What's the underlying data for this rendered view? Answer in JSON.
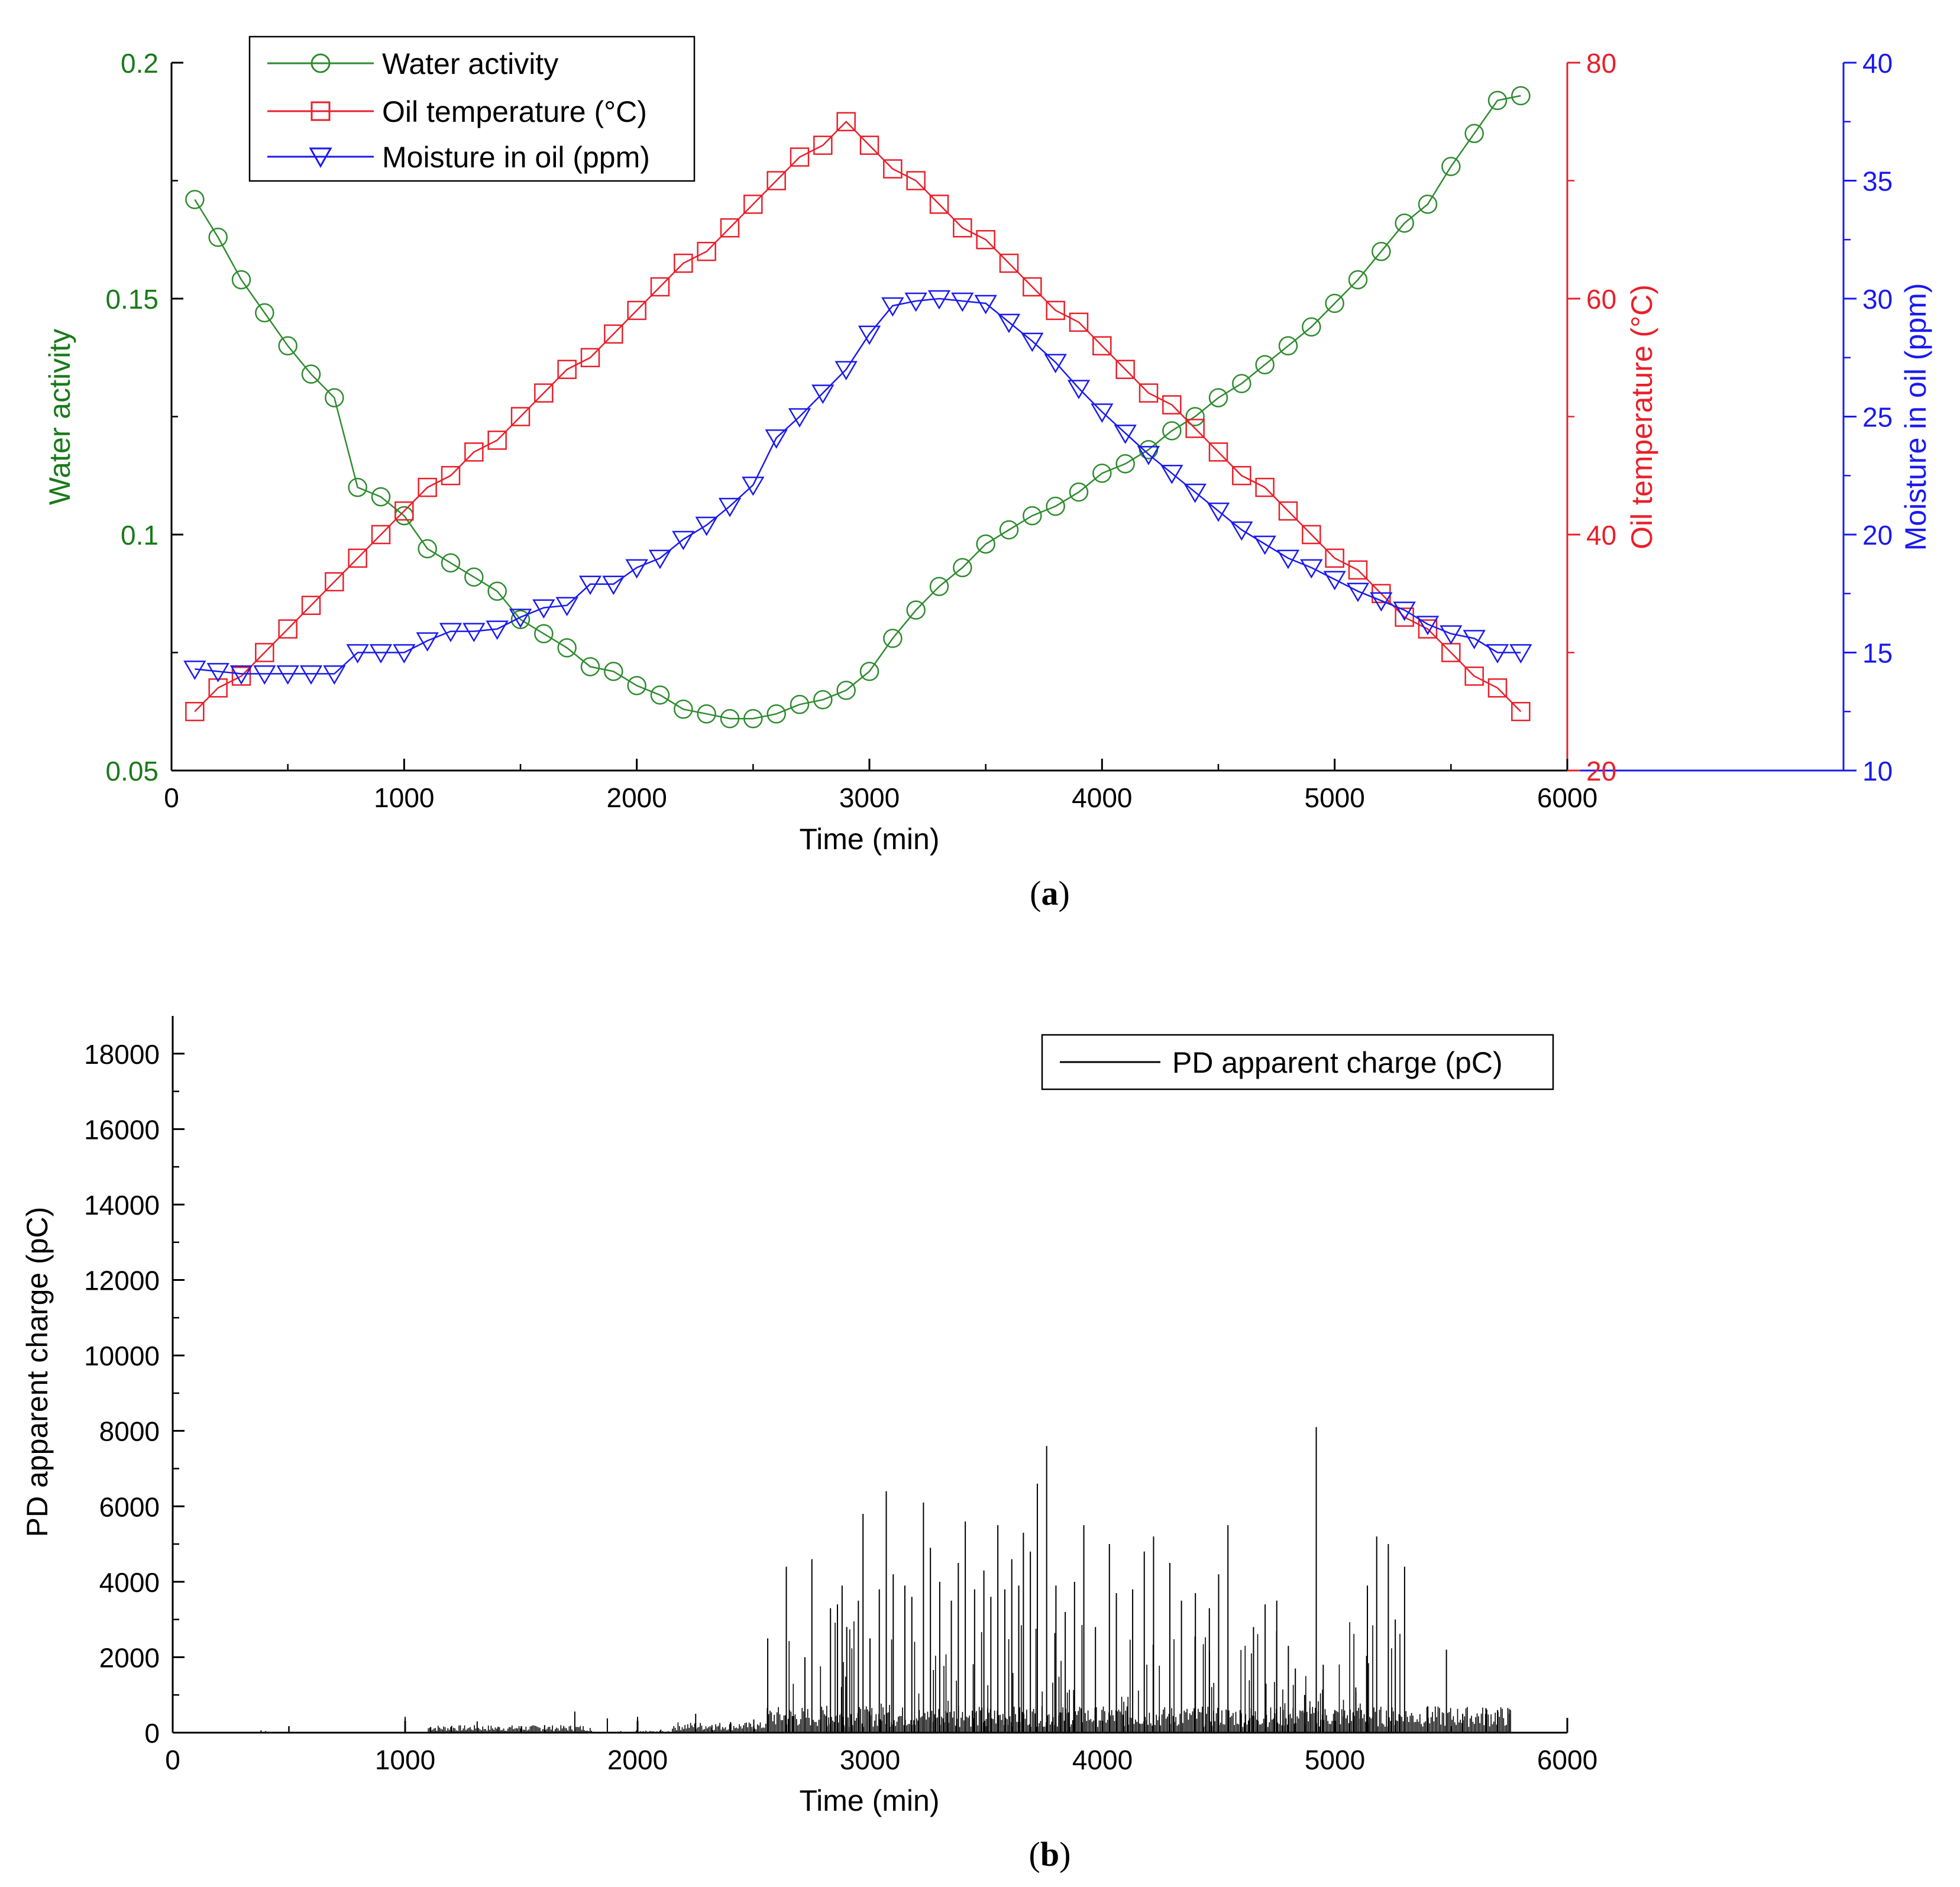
{
  "chart_data": [
    {
      "type": "line",
      "panel_label": "(a)",
      "panel_letter": "a",
      "xlabel": "Time (min)",
      "xlim": [
        0,
        6000
      ],
      "xticks": [
        0,
        1000,
        2000,
        3000,
        4000,
        5000,
        6000
      ],
      "axes": {
        "left": {
          "label": "Water activity",
          "lim": [
            0.05,
            0.2
          ],
          "ticks": [
            "0.05",
            "0.1",
            "0.15",
            "0.2"
          ],
          "color": "#1a7a1a"
        },
        "right1": {
          "label": "Oil temperature (°C)",
          "lim": [
            20,
            80
          ],
          "ticks": [
            "20",
            "40",
            "60",
            "80"
          ],
          "color": "#e8202a"
        },
        "right2": {
          "label": "Moisture in oil (ppm)",
          "lim": [
            10,
            40
          ],
          "ticks": [
            "10",
            "15",
            "20",
            "25",
            "30",
            "35",
            "40"
          ],
          "color": "#1a1aee"
        }
      },
      "series": [
        {
          "name": "Water activity",
          "axis": "left",
          "marker": "circle",
          "color": "#2e8b2e",
          "x": [
            100,
            200,
            300,
            400,
            500,
            600,
            700,
            800,
            900,
            1000,
            1100,
            1200,
            1300,
            1400,
            1500,
            1600,
            1700,
            1800,
            1900,
            2000,
            2100,
            2200,
            2300,
            2400,
            2500,
            2600,
            2700,
            2800,
            2900,
            3000,
            3100,
            3200,
            3300,
            3400,
            3500,
            3600,
            3700,
            3800,
            3900,
            4000,
            4100,
            4200,
            4300,
            4400,
            4500,
            4600,
            4700,
            4800,
            4900,
            5000,
            5100,
            5200,
            5300,
            5400,
            5500,
            5600,
            5700,
            5800
          ],
          "values": [
            0.171,
            0.163,
            0.154,
            0.147,
            0.14,
            0.134,
            0.129,
            0.11,
            0.108,
            0.104,
            0.097,
            0.094,
            0.091,
            0.088,
            0.082,
            0.079,
            0.076,
            0.072,
            0.071,
            0.068,
            0.066,
            0.063,
            0.062,
            0.061,
            0.061,
            0.062,
            0.064,
            0.065,
            0.067,
            0.071,
            0.078,
            0.084,
            0.089,
            0.093,
            0.098,
            0.101,
            0.104,
            0.106,
            0.109,
            0.113,
            0.115,
            0.118,
            0.122,
            0.125,
            0.129,
            0.132,
            0.136,
            0.14,
            0.144,
            0.149,
            0.154,
            0.16,
            0.166,
            0.17,
            0.178,
            0.185,
            0.192,
            0.193
          ]
        },
        {
          "name": "Oil temperature (°C)",
          "axis": "right1",
          "marker": "square",
          "color": "#e8202a",
          "x": [
            100,
            200,
            300,
            400,
            500,
            600,
            700,
            800,
            900,
            1000,
            1100,
            1200,
            1300,
            1400,
            1500,
            1600,
            1700,
            1800,
            1900,
            2000,
            2100,
            2200,
            2300,
            2400,
            2500,
            2600,
            2700,
            2800,
            2900,
            3000,
            3100,
            3200,
            3300,
            3400,
            3500,
            3600,
            3700,
            3800,
            3900,
            4000,
            4100,
            4200,
            4300,
            4400,
            4500,
            4600,
            4700,
            4800,
            4900,
            5000,
            5100,
            5200,
            5300,
            5400,
            5500,
            5600,
            5700,
            5800
          ],
          "values": [
            25,
            27,
            28,
            30,
            32,
            34,
            36,
            38,
            40,
            42,
            44,
            45,
            47,
            48,
            50,
            52,
            54,
            55,
            57,
            59,
            61,
            63,
            64,
            66,
            68,
            70,
            72,
            73,
            75,
            73,
            71,
            70,
            68,
            66,
            65,
            63,
            61,
            59,
            58,
            56,
            54,
            52,
            51,
            49,
            47,
            45,
            44,
            42,
            40,
            38,
            37,
            35,
            33,
            32,
            30,
            28,
            27,
            25
          ]
        },
        {
          "name": "Moisture in oil (ppm)",
          "axis": "right2",
          "marker": "triangle-down",
          "color": "#1a1aee",
          "x": [
            100,
            200,
            300,
            400,
            500,
            600,
            700,
            800,
            900,
            1000,
            1100,
            1200,
            1300,
            1400,
            1500,
            1600,
            1700,
            1800,
            1900,
            2000,
            2100,
            2200,
            2300,
            2400,
            2500,
            2600,
            2700,
            2800,
            2900,
            3000,
            3100,
            3200,
            3300,
            3400,
            3500,
            3600,
            3700,
            3800,
            3900,
            4000,
            4100,
            4200,
            4300,
            4400,
            4500,
            4600,
            4700,
            4800,
            4900,
            5000,
            5100,
            5200,
            5300,
            5400,
            5500,
            5600,
            5700,
            5800
          ],
          "values": [
            14.3,
            14.2,
            14.1,
            14.1,
            14.1,
            14.1,
            14.1,
            15.0,
            15.0,
            15.0,
            15.5,
            15.9,
            15.9,
            16.0,
            16.5,
            16.9,
            17.0,
            17.9,
            17.9,
            18.6,
            19.0,
            19.8,
            20.4,
            21.2,
            22.1,
            24.1,
            25.0,
            26.0,
            27.0,
            28.5,
            29.7,
            29.9,
            30.0,
            29.9,
            29.8,
            29.0,
            28.2,
            27.3,
            26.2,
            25.2,
            24.3,
            23.4,
            22.6,
            21.8,
            21.0,
            20.2,
            19.6,
            19.0,
            18.6,
            18.1,
            17.6,
            17.2,
            16.8,
            16.2,
            15.8,
            15.6,
            15.0,
            15.0
          ]
        }
      ],
      "legend": {
        "position": "top-left",
        "entries": [
          "Water activity",
          "Oil temperature (°C)",
          "Moisture in oil (ppm)"
        ]
      }
    },
    {
      "type": "line",
      "panel_label": "(b)",
      "panel_letter": "b",
      "xlabel": "Time (min)",
      "ylabel": "PD apparent charge (pC)",
      "xlim": [
        0,
        6000
      ],
      "ylim": [
        0,
        19000
      ],
      "xticks": [
        0,
        1000,
        2000,
        3000,
        4000,
        5000,
        6000
      ],
      "yticks": [
        0,
        2000,
        4000,
        6000,
        8000,
        10000,
        12000,
        14000,
        16000,
        18000
      ],
      "series": [
        {
          "name": "PD apparent charge (pC)",
          "color": "#000000",
          "spikes": [
            [
              380,
              60
            ],
            [
              400,
              40
            ],
            [
              1000,
              420
            ],
            [
              1110,
              150
            ],
            [
              1200,
              180
            ],
            [
              1310,
              300
            ],
            [
              1400,
              140
            ],
            [
              1500,
              160
            ],
            [
              1600,
              200
            ],
            [
              1730,
              560
            ],
            [
              1870,
              380
            ],
            [
              2000,
              420
            ],
            [
              2100,
              80
            ],
            [
              2250,
              500
            ],
            [
              2320,
              200
            ],
            [
              2400,
              280
            ],
            [
              2500,
              350
            ],
            [
              2560,
              2500
            ],
            [
              2640,
              4400
            ],
            [
              2720,
              2000
            ],
            [
              2750,
              4600
            ],
            [
              2830,
              3300
            ],
            [
              2860,
              3400
            ],
            [
              2880,
              3900
            ],
            [
              2900,
              2800
            ],
            [
              2950,
              3500
            ],
            [
              2970,
              5800
            ],
            [
              3000,
              2500
            ],
            [
              3040,
              3800
            ],
            [
              3070,
              6400
            ],
            [
              3100,
              4200
            ],
            [
              3150,
              3900
            ],
            [
              3180,
              3600
            ],
            [
              3230,
              6100
            ],
            [
              3260,
              4900
            ],
            [
              3300,
              4000
            ],
            [
              3350,
              3500
            ],
            [
              3380,
              4500
            ],
            [
              3410,
              5600
            ],
            [
              3450,
              3800
            ],
            [
              3490,
              4300
            ],
            [
              3520,
              3600
            ],
            [
              3550,
              5500
            ],
            [
              3580,
              3800
            ],
            [
              3610,
              4600
            ],
            [
              3640,
              3900
            ],
            [
              3660,
              5300
            ],
            [
              3690,
              4800
            ],
            [
              3720,
              6600
            ],
            [
              3760,
              7600
            ],
            [
              3800,
              3900
            ],
            [
              3840,
              3200
            ],
            [
              3880,
              4000
            ],
            [
              3920,
              5500
            ],
            [
              3970,
              2800
            ],
            [
              4030,
              5000
            ],
            [
              4060,
              3700
            ],
            [
              4130,
              3800
            ],
            [
              4180,
              4800
            ],
            [
              4220,
              5200
            ],
            [
              4290,
              4500
            ],
            [
              4340,
              3500
            ],
            [
              4400,
              3700
            ],
            [
              4460,
              3300
            ],
            [
              4500,
              4200
            ],
            [
              4540,
              5500
            ],
            [
              4650,
              2800
            ],
            [
              4700,
              3400
            ],
            [
              4750,
              3500
            ],
            [
              4800,
              2300
            ],
            [
              4830,
              1700
            ],
            [
              4870,
              1000
            ],
            [
              4920,
              8100
            ],
            [
              4950,
              1800
            ],
            [
              5000,
              600
            ],
            [
              5090,
              1200
            ],
            [
              5140,
              3900
            ],
            [
              5180,
              5200
            ],
            [
              5230,
              5000
            ],
            [
              5260,
              3000
            ],
            [
              5300,
              4400
            ],
            [
              5400,
              700
            ],
            [
              5480,
              2200
            ],
            [
              5550,
              500
            ],
            [
              5650,
              650
            ],
            [
              5700,
              600
            ],
            [
              5750,
              500
            ]
          ]
        }
      ],
      "legend": {
        "position": "top-right",
        "entries": [
          "PD apparent charge (pC)"
        ]
      }
    }
  ]
}
